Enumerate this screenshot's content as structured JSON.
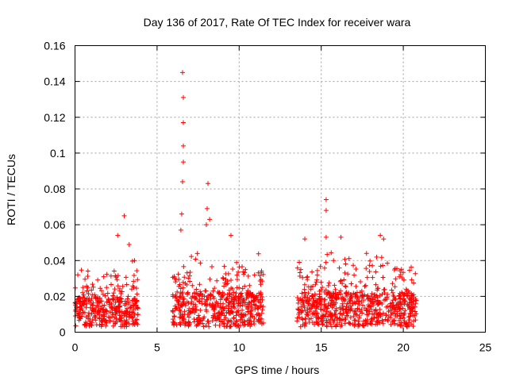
{
  "chart_data": {
    "type": "scatter",
    "title": "Day 136 of 2017, Rate Of TEC Index for receiver wara",
    "xlabel": "GPS time / hours",
    "ylabel": "ROTI / TECUs",
    "xlim": [
      0,
      25
    ],
    "ylim": [
      0,
      0.16
    ],
    "xticks": [
      0,
      5,
      10,
      15,
      20,
      25
    ],
    "yticks": [
      0,
      0.02,
      0.04,
      0.06,
      0.08,
      0.1,
      0.12,
      0.14,
      0.16
    ],
    "xtick_labels": [
      "0",
      "5",
      "10",
      "15",
      "20",
      "25"
    ],
    "ytick_labels": [
      "0",
      "0.02",
      "0.04",
      "0.06",
      "0.08",
      "0.1",
      "0.12",
      "0.14",
      "0.16"
    ],
    "grid": true,
    "marker": "+",
    "color": "#ff0000",
    "series": [
      {
        "name": "ROTI",
        "segments": [
          {
            "x_start": 0.0,
            "x_end": 3.9,
            "y_base_min": 0.003,
            "y_base_max": 0.03,
            "typical_peak": 0.04
          },
          {
            "x_start": 5.95,
            "x_end": 11.5,
            "y_base_min": 0.003,
            "y_base_max": 0.035,
            "typical_peak": 0.045
          },
          {
            "x_start": 13.5,
            "x_end": 20.8,
            "y_base_min": 0.003,
            "y_base_max": 0.035,
            "typical_peak": 0.045
          }
        ],
        "outliers": [
          {
            "x": 3.0,
            "y": 0.065
          },
          {
            "x": 2.6,
            "y": 0.054
          },
          {
            "x": 3.3,
            "y": 0.049
          },
          {
            "x": 6.55,
            "y": 0.145
          },
          {
            "x": 6.6,
            "y": 0.131
          },
          {
            "x": 6.6,
            "y": 0.117
          },
          {
            "x": 6.6,
            "y": 0.104
          },
          {
            "x": 6.6,
            "y": 0.095
          },
          {
            "x": 6.55,
            "y": 0.084
          },
          {
            "x": 6.5,
            "y": 0.066
          },
          {
            "x": 6.45,
            "y": 0.057
          },
          {
            "x": 8.1,
            "y": 0.083
          },
          {
            "x": 8.05,
            "y": 0.069
          },
          {
            "x": 8.2,
            "y": 0.063
          },
          {
            "x": 8.0,
            "y": 0.06
          },
          {
            "x": 9.5,
            "y": 0.054
          },
          {
            "x": 15.3,
            "y": 0.074
          },
          {
            "x": 15.3,
            "y": 0.068
          },
          {
            "x": 15.3,
            "y": 0.053
          },
          {
            "x": 14.0,
            "y": 0.052
          },
          {
            "x": 16.2,
            "y": 0.053
          },
          {
            "x": 18.6,
            "y": 0.054
          },
          {
            "x": 18.8,
            "y": 0.052
          }
        ]
      }
    ]
  }
}
